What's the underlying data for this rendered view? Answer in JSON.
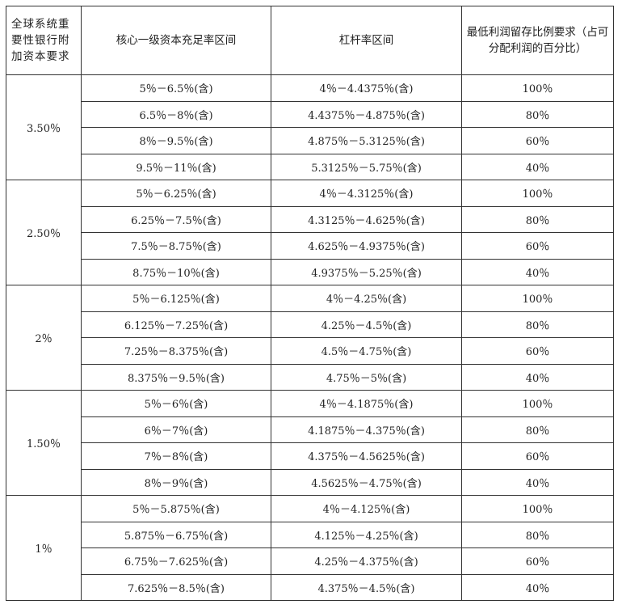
{
  "headers": [
    "全球系统重要性银行附加资本要求",
    "核心一级资本充足率区间",
    "杠杆率区间",
    "最低利润留存比例要求（占可分配利润的百分比）"
  ],
  "groups": [
    {
      "surcharge": "3.50％",
      "rows": [
        [
          "5％－6.5％(含)",
          "4％－4.4375％(含)",
          "100％"
        ],
        [
          "6.5％－8％(含)",
          "4.4375％－4.875％(含)",
          "80％"
        ],
        [
          "8％－9.5％(含)",
          "4.875％－5.3125％(含)",
          "60％"
        ],
        [
          "9.5％－11％(含)",
          "5.3125％－5.75％(含)",
          "40％"
        ]
      ]
    },
    {
      "surcharge": "2.50％",
      "rows": [
        [
          "5％－6.25％(含)",
          "4％－4.3125％(含)",
          "100％"
        ],
        [
          "6.25％－7.5％(含)",
          "4.3125％－4.625％(含)",
          "80％"
        ],
        [
          "7.5％－8.75％(含)",
          "4.625％－4.9375％(含)",
          "60％"
        ],
        [
          "8.75％－10％(含)",
          "4.9375％－5.25％(含)",
          "40％"
        ]
      ]
    },
    {
      "surcharge": "2％",
      "rows": [
        [
          "5％－6.125％(含)",
          "4％－4.25％(含)",
          "100％"
        ],
        [
          "6.125％－7.25％(含)",
          "4.25％－4.5％(含)",
          "80％"
        ],
        [
          "7.25％－8.375％(含)",
          "4.5％－4.75％(含)",
          "60％"
        ],
        [
          "8.375％－9.5％(含)",
          "4.75％－5％(含)",
          "40％"
        ]
      ]
    },
    {
      "surcharge": "1.50％",
      "rows": [
        [
          "5％－6％(含)",
          "4％－4.1875％(含)",
          "100％"
        ],
        [
          "6％－7％(含)",
          "4.1875％－4.375％(含)",
          "80％"
        ],
        [
          "7％－8％(含)",
          "4.375％－4.5625％(含)",
          "60％"
        ],
        [
          "8％－9％(含)",
          "4.5625％－4.75％(含)",
          "40％"
        ]
      ]
    },
    {
      "surcharge": "1％",
      "rows": [
        [
          "5％－5.875％(含)",
          "4％－4.125％(含)",
          "100％"
        ],
        [
          "5.875％－6.75％(含)",
          "4.125％－4.25％(含)",
          "80％"
        ],
        [
          "6.75％－7.625％(含)",
          "4.25％－4.375％(含)",
          "60％"
        ],
        [
          "7.625％－8.5％(含)",
          "4.375％－4.5％(含)",
          "40％"
        ]
      ]
    }
  ]
}
